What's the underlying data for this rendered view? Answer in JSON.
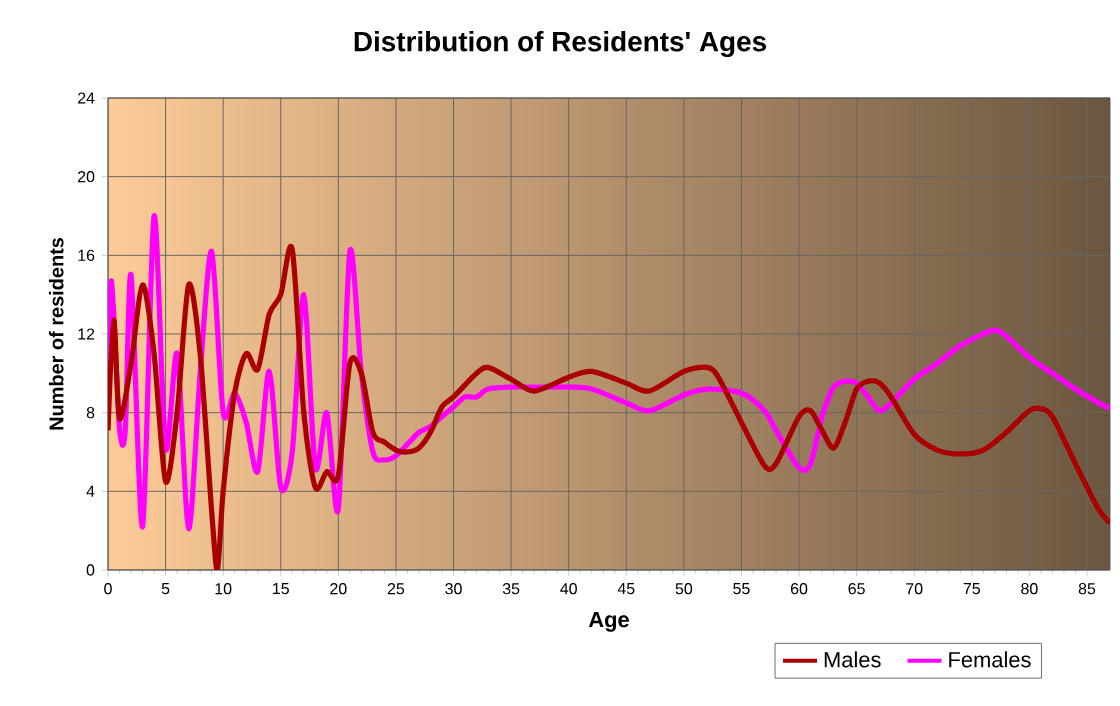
{
  "chart_data": {
    "type": "line",
    "title": "Distribution of Residents' Ages",
    "xlabel": "Age",
    "ylabel": "Number of residents",
    "series": [
      {
        "name": "Males",
        "color": "#aa0000",
        "x": [
          0,
          0.5,
          1,
          2,
          3,
          4,
          5,
          6,
          7,
          8,
          9,
          9.5,
          10,
          11,
          12,
          13,
          14,
          15,
          16,
          17,
          18,
          19,
          20,
          21,
          22,
          23,
          24,
          25,
          26,
          27,
          28,
          29,
          30,
          32,
          33,
          35,
          37,
          40,
          42,
          45,
          47,
          50,
          52,
          53,
          55,
          57,
          58,
          60,
          61,
          62,
          63,
          64,
          65,
          66,
          67,
          68,
          70,
          72,
          74,
          76,
          78,
          80,
          81,
          82,
          84,
          86,
          87
        ],
        "values": [
          7.1,
          12.7,
          7.7,
          10.5,
          14.5,
          11,
          4.5,
          8,
          14.5,
          11,
          3,
          0,
          4,
          9,
          11,
          10.2,
          13,
          14,
          16.3,
          8,
          4.2,
          5,
          4.8,
          10.5,
          10,
          7,
          6.5,
          6.1,
          6,
          6.2,
          7,
          8.3,
          8.8,
          10,
          10.3,
          9.7,
          9.1,
          9.8,
          10.1,
          9.5,
          9.1,
          10.1,
          10.3,
          9.8,
          7.5,
          5.3,
          5.4,
          7.8,
          8.1,
          7.1,
          6.2,
          7.5,
          9.2,
          9.6,
          9.5,
          8.8,
          6.9,
          6.1,
          5.9,
          6.1,
          7,
          8.1,
          8.2,
          7.8,
          5.4,
          3.1,
          2.4
        ]
      },
      {
        "name": "Females",
        "color": "#ff00ff",
        "x": [
          0,
          0.3,
          1,
          1.5,
          2,
          3,
          4,
          5,
          6,
          7,
          8,
          9,
          10,
          11,
          12,
          13,
          14,
          15,
          16,
          17,
          18,
          19,
          20,
          21,
          22,
          23,
          24,
          25,
          26,
          27,
          28,
          29,
          30,
          31,
          32,
          33,
          35,
          37,
          40,
          42,
          45,
          47,
          50,
          52,
          55,
          57,
          58,
          60,
          61,
          62,
          63,
          64,
          65,
          66,
          67,
          68,
          70,
          72,
          74,
          76,
          77,
          78,
          80,
          82,
          84,
          86,
          87
        ],
        "values": [
          8.5,
          14.7,
          7.2,
          7.1,
          15,
          2.2,
          18,
          6.2,
          11,
          2.1,
          10,
          16.2,
          8,
          9,
          7.5,
          5,
          10.1,
          4.2,
          6,
          14,
          5.2,
          8,
          3.1,
          16.2,
          10,
          6,
          5.6,
          5.8,
          6.4,
          7,
          7.3,
          7.8,
          8.3,
          8.8,
          8.8,
          9.2,
          9.3,
          9.3,
          9.3,
          9.2,
          8.5,
          8.1,
          8.9,
          9.2,
          9,
          8.1,
          7.1,
          5.2,
          5.4,
          7.8,
          9.3,
          9.6,
          9.5,
          8.8,
          8.1,
          8.5,
          9.7,
          10.5,
          11.4,
          12,
          12.2,
          11.9,
          10.8,
          10,
          9.2,
          8.5,
          8.2
        ]
      }
    ],
    "xlim": [
      0,
      87
    ],
    "ylim": [
      0,
      24
    ],
    "xticks": [
      0,
      5,
      10,
      15,
      20,
      25,
      30,
      35,
      40,
      45,
      50,
      55,
      60,
      65,
      70,
      75,
      80,
      85
    ],
    "yticks": [
      0,
      4,
      8,
      12,
      16,
      20,
      24
    ],
    "grid": true,
    "legend": "bottom right"
  }
}
